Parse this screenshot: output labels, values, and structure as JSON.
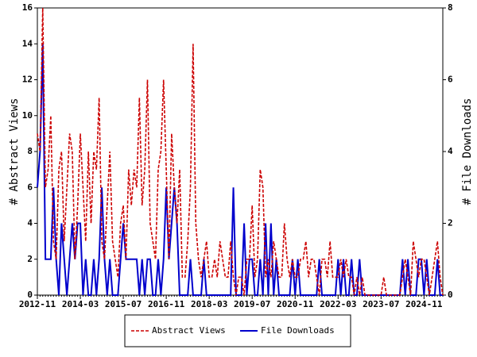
{
  "chart_data": {
    "type": "line",
    "y_label": "# Abstract Views",
    "y2_label": "# File Downloads",
    "categories": [
      "2012-11",
      null,
      null,
      null,
      null,
      null,
      null,
      null,
      null,
      null,
      null,
      null,
      null,
      null,
      null,
      null,
      "2014-03",
      null,
      null,
      null,
      null,
      null,
      null,
      null,
      null,
      null,
      null,
      null,
      null,
      null,
      null,
      null,
      "2015-07",
      null,
      null,
      null,
      null,
      null,
      null,
      null,
      null,
      null,
      null,
      null,
      null,
      null,
      null,
      null,
      "2016-11",
      null,
      null,
      null,
      null,
      null,
      null,
      null,
      null,
      null,
      null,
      null,
      null,
      null,
      null,
      null,
      "2018-03",
      null,
      null,
      null,
      null,
      null,
      null,
      null,
      null,
      null,
      null,
      null,
      null,
      null,
      null,
      null,
      "2019-07",
      null,
      null,
      null,
      null,
      null,
      null,
      null,
      null,
      null,
      null,
      null,
      null,
      null,
      null,
      null,
      "2020-11",
      null,
      null,
      null,
      null,
      null,
      null,
      null,
      null,
      null,
      null,
      null,
      null,
      null,
      null,
      null,
      "2022-03",
      null,
      null,
      null,
      null,
      null,
      null,
      null,
      null,
      null,
      null,
      null,
      null,
      null,
      null,
      null,
      "2023-07",
      null,
      null,
      null,
      null,
      null,
      null,
      null,
      null,
      null,
      null,
      null,
      null,
      null,
      null,
      null,
      "2024-11",
      null,
      null,
      null,
      null,
      null,
      null,
      null
    ],
    "series": [
      {
        "name": "Abstract Views",
        "color": "#cc0000",
        "dash": true,
        "values": [
          9,
          8,
          16,
          6,
          7,
          10,
          3,
          2,
          7,
          8,
          3,
          6,
          9,
          8,
          2,
          5,
          9,
          6,
          3,
          8,
          4,
          8,
          7,
          11,
          3,
          2,
          5,
          8,
          3,
          2,
          1,
          4,
          5,
          2,
          7,
          5,
          7,
          6,
          11,
          5,
          7,
          12,
          4,
          3,
          2,
          7,
          8,
          12,
          7,
          2,
          9,
          6,
          4,
          7,
          1,
          1,
          3,
          6,
          14,
          4,
          2,
          1,
          2,
          3,
          1,
          1,
          2,
          1,
          3,
          2,
          1,
          1,
          3,
          1,
          0,
          1,
          1,
          0,
          2,
          2,
          5,
          1,
          2,
          7,
          6,
          1,
          2,
          1,
          3,
          2,
          1,
          1,
          4,
          2,
          1,
          2,
          1,
          1,
          2,
          2,
          3,
          1,
          2,
          2,
          1,
          0,
          2,
          2,
          1,
          3,
          1,
          1,
          1,
          2,
          1,
          2,
          1,
          1,
          0,
          1,
          0,
          1,
          0,
          0,
          0,
          0,
          0,
          0,
          0,
          1,
          0,
          0,
          0,
          0,
          0,
          0,
          1,
          2,
          1,
          0,
          3,
          2,
          1,
          2,
          2,
          1,
          0,
          1,
          2,
          3,
          1,
          0
        ]
      },
      {
        "name": "File Downloads",
        "color": "#0000cc",
        "dash": false,
        "axis": "y2",
        "values": [
          3,
          4,
          7,
          1,
          1,
          1,
          3,
          1,
          0,
          2,
          1,
          0,
          1,
          2,
          1,
          2,
          2,
          0,
          1,
          0,
          0,
          1,
          0,
          1,
          3,
          1,
          0,
          1,
          0,
          0,
          0,
          1,
          2,
          1,
          1,
          1,
          1,
          1,
          0,
          1,
          0,
          1,
          1,
          0,
          0,
          1,
          0,
          1,
          3,
          1,
          2,
          3,
          2,
          0,
          0,
          0,
          0,
          1,
          0,
          0,
          0,
          0,
          1,
          0,
          0,
          0,
          0,
          0,
          0,
          0,
          0,
          0,
          0,
          3,
          0,
          0,
          0,
          2,
          0,
          1,
          1,
          0,
          0,
          1,
          0,
          2,
          0,
          2,
          0,
          1,
          0,
          0,
          0,
          0,
          0,
          1,
          0,
          1,
          0,
          0,
          0,
          0,
          0,
          0,
          0,
          1,
          0,
          0,
          0,
          0,
          0,
          0,
          1,
          0,
          1,
          0,
          0,
          1,
          0,
          0,
          1,
          0,
          0,
          0,
          0,
          0,
          0,
          0,
          0,
          0,
          0,
          0,
          0,
          0,
          0,
          0,
          1,
          0,
          1,
          0,
          0,
          0,
          1,
          1,
          0,
          1,
          0,
          0,
          0,
          1,
          0,
          0
        ]
      }
    ],
    "ylim": [
      0,
      16
    ],
    "yticks": [
      0,
      2,
      4,
      6,
      8,
      10,
      12,
      14,
      16
    ],
    "y2lim": [
      0,
      8
    ],
    "y2ticks": [
      0,
      2,
      4,
      6,
      8
    ],
    "legend": "bottom"
  }
}
